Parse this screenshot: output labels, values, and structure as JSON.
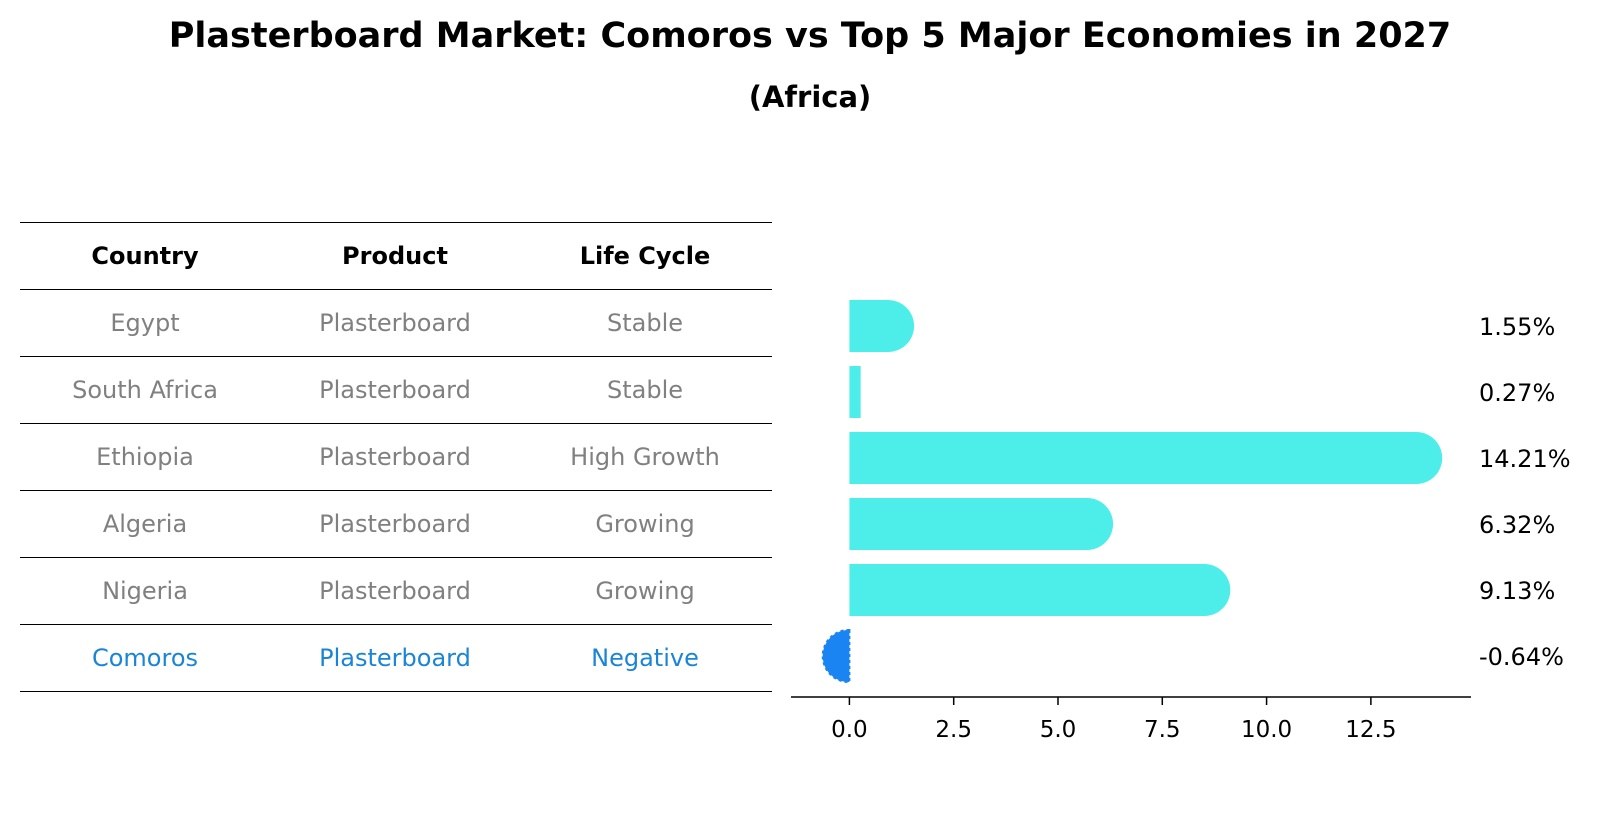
{
  "title": "Plasterboard Market: Comoros vs Top 5 Major Economies in 2027",
  "subtitle": "(Africa)",
  "table": {
    "headers": [
      "Country",
      "Product",
      "Life Cycle"
    ],
    "rows": [
      [
        "Egypt",
        "Plasterboard",
        "Stable"
      ],
      [
        "South Africa",
        "Plasterboard",
        "Stable"
      ],
      [
        "Ethiopia",
        "Plasterboard",
        "High Growth"
      ],
      [
        "Algeria",
        "Plasterboard",
        "Growing"
      ],
      [
        "Nigeria",
        "Plasterboard",
        "Growing"
      ],
      [
        "Comoros",
        "Plasterboard",
        "Negative"
      ]
    ],
    "highlight_row": 5
  },
  "colors": {
    "bar": "#4DEEEA",
    "highlight": "#1A85F2",
    "row_text": "#808080",
    "highlight_text": "#1A85D6"
  },
  "chart_data": {
    "type": "bar",
    "orientation": "horizontal",
    "categories": [
      "Egypt",
      "South Africa",
      "Ethiopia",
      "Algeria",
      "Nigeria",
      "Comoros"
    ],
    "values": [
      1.55,
      0.27,
      14.21,
      6.32,
      9.13,
      -0.64
    ],
    "labels": [
      "1.55%",
      "0.27%",
      "14.21%",
      "6.32%",
      "9.13%",
      "-0.64%"
    ],
    "xlim": [
      -1.4,
      14.9
    ],
    "xticks": [
      0.0,
      2.5,
      5.0,
      7.5,
      10.0,
      12.5
    ],
    "xtick_labels": [
      "0.0",
      "2.5",
      "5.0",
      "7.5",
      "10.0",
      "12.5"
    ],
    "highlight_index": 5,
    "grid": false
  }
}
